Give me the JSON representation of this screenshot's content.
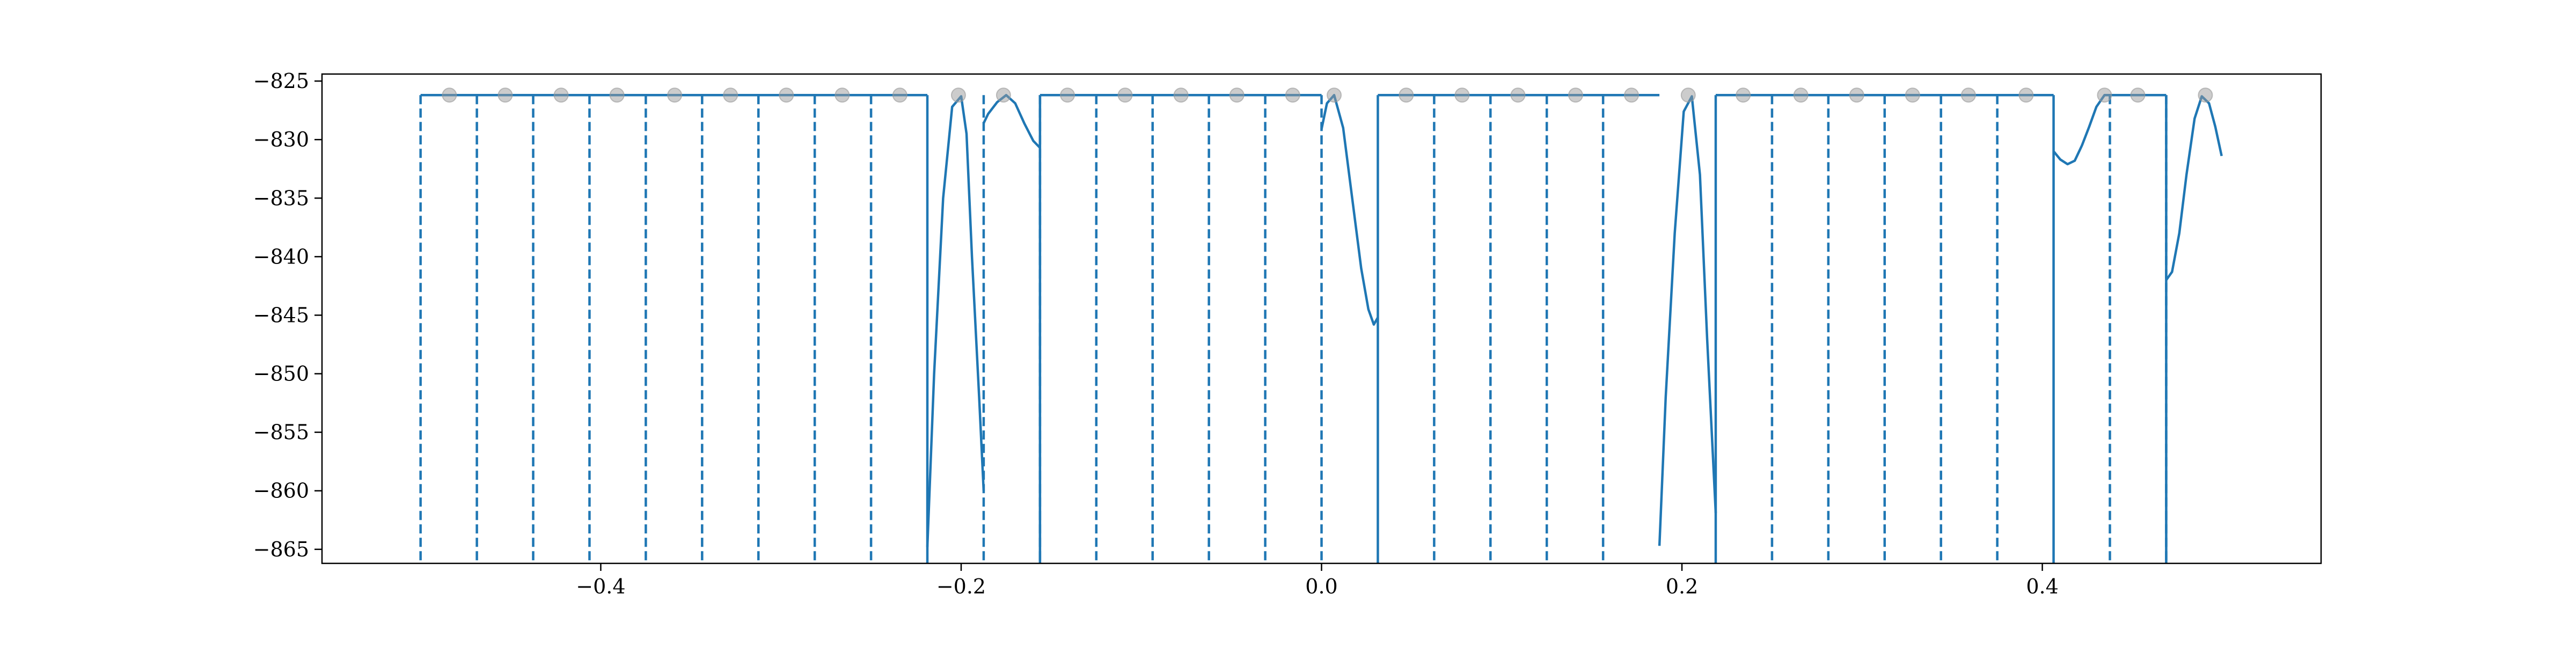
{
  "chart_data": {
    "type": "line",
    "title": "",
    "xlabel": "",
    "ylabel": "",
    "xlim": [
      -0.5547,
      0.5547
    ],
    "ylim": [
      -866.2,
      -824.4
    ],
    "x_ticks": [
      -0.4,
      -0.2,
      0.0,
      0.2,
      0.4
    ],
    "x_tick_labels": [
      "−0.4",
      "−0.2",
      "0.0",
      "0.2",
      "0.4"
    ],
    "y_ticks": [
      -825,
      -830,
      -835,
      -840,
      -845,
      -850,
      -855,
      -860,
      -865
    ],
    "y_tick_labels": [
      "−825",
      "−830",
      "−835",
      "−840",
      "−845",
      "−850",
      "−855",
      "−860",
      "−865"
    ],
    "grid": false,
    "legend": "none",
    "colors": {
      "line": "#1f77b4",
      "marker": "#999999",
      "axes": "#000000"
    },
    "dashed_vlines_x": [
      -0.5,
      -0.46875,
      -0.4375,
      -0.40625,
      -0.375,
      -0.34375,
      -0.3125,
      -0.28125,
      -0.25,
      -0.1875,
      -0.15625,
      -0.125,
      -0.09375,
      -0.0625,
      -0.03125,
      0.0,
      0.0625,
      0.09375,
      0.125,
      0.15625,
      0.25,
      0.28125,
      0.3125,
      0.34375,
      0.375,
      0.4375,
      0.46875
    ],
    "solid_vlines_x": [
      -0.21875,
      -0.15625,
      0.03125,
      0.21875,
      0.40625,
      0.46875
    ],
    "marker_points": {
      "x": [
        -0.484,
        -0.453,
        -0.422,
        -0.391,
        -0.359,
        -0.328,
        -0.297,
        -0.266,
        -0.234,
        -0.2015,
        -0.1765,
        -0.141,
        -0.109,
        -0.078,
        -0.047,
        -0.016,
        0.007,
        0.047,
        0.078,
        0.109,
        0.141,
        0.172,
        0.2035,
        0.234,
        0.266,
        0.297,
        0.328,
        0.359,
        0.391,
        0.4345,
        0.453,
        0.4905
      ],
      "y": [
        -826.2,
        -826.2,
        -826.2,
        -826.2,
        -826.2,
        -826.2,
        -826.2,
        -826.2,
        -826.2,
        -826.2,
        -826.2,
        -826.2,
        -826.2,
        -826.2,
        -826.2,
        -826.2,
        -826.2,
        -826.2,
        -826.2,
        -826.2,
        -826.2,
        -826.2,
        -826.2,
        -826.2,
        -826.2,
        -826.2,
        -826.2,
        -826.2,
        -826.2,
        -826.2,
        -826.2,
        -826.2
      ]
    },
    "series": [
      {
        "x": [
          -0.5,
          -0.21875
        ],
        "y": [
          -826.2,
          -826.2
        ]
      },
      {
        "x": [
          -0.21875,
          -0.215,
          -0.21,
          -0.205,
          -0.2,
          -0.197,
          -0.194,
          -0.19,
          -0.1875
        ],
        "y": [
          -864.8,
          -850,
          -835,
          -827.2,
          -826.3,
          -829.5,
          -840,
          -852,
          -860.0
        ]
      },
      {
        "x": [
          -0.1875,
          -0.185,
          -0.18,
          -0.175,
          -0.17,
          -0.165,
          -0.16,
          -0.15625
        ],
        "y": [
          -828.6,
          -827.8,
          -826.8,
          -826.2,
          -826.9,
          -828.6,
          -830.1,
          -830.7
        ]
      },
      {
        "x": [
          -0.15625,
          0.0
        ],
        "y": [
          -826.2,
          -826.2
        ]
      },
      {
        "x": [
          0.0,
          0.003,
          0.007,
          0.012,
          0.017,
          0.022,
          0.026,
          0.029,
          0.03125
        ],
        "y": [
          -829.1,
          -826.9,
          -826.2,
          -829.0,
          -835.0,
          -841.0,
          -844.5,
          -845.8,
          -845.2
        ]
      },
      {
        "x": [
          0.03125,
          0.1875
        ],
        "y": [
          -826.2,
          -826.2
        ]
      },
      {
        "x": [
          0.1875,
          0.191,
          0.196,
          0.201,
          0.2055,
          0.21,
          0.214,
          0.21875
        ],
        "y": [
          -864.7,
          -852,
          -838,
          -827.6,
          -826.3,
          -833,
          -847,
          -861.9
        ]
      },
      {
        "x": [
          0.21875,
          0.40625
        ],
        "y": [
          -826.2,
          -826.2
        ]
      },
      {
        "x": [
          0.40625,
          0.41,
          0.414,
          0.418,
          0.422,
          0.426,
          0.43,
          0.4345,
          0.4375
        ],
        "y": [
          -831.0,
          -831.7,
          -832.1,
          -831.8,
          -830.5,
          -828.9,
          -827.2,
          -826.2,
          -826.2
        ]
      },
      {
        "x": [
          0.4375,
          0.46875
        ],
        "y": [
          -826.2,
          -826.2
        ]
      },
      {
        "x": [
          0.46875,
          0.472,
          0.476,
          0.48,
          0.4845,
          0.4885,
          0.4925,
          0.496,
          0.4995
        ],
        "y": [
          -842.0,
          -841.3,
          -838.0,
          -833.0,
          -828.2,
          -826.3,
          -826.9,
          -828.9,
          -831.4
        ]
      }
    ]
  }
}
